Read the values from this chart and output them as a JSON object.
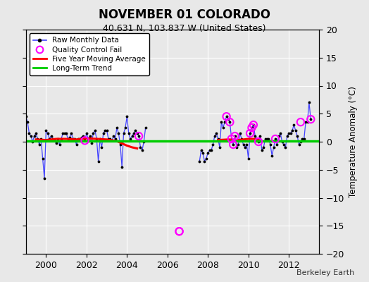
{
  "title": "NOVEMBER 01 COLORADO",
  "subtitle": "40.631 N, 103.837 W (United States)",
  "ylabel": "Temperature Anomaly (°C)",
  "watermark": "Berkeley Earth",
  "xlim": [
    1999.0,
    2013.5
  ],
  "ylim": [
    -20,
    20
  ],
  "yticks": [
    -20,
    -15,
    -10,
    -5,
    0,
    5,
    10,
    15,
    20
  ],
  "xticks": [
    2000,
    2002,
    2004,
    2006,
    2008,
    2010,
    2012
  ],
  "background_color": "#e8e8e8",
  "raw_x": [
    1999.0,
    1999.083,
    1999.167,
    1999.25,
    1999.333,
    1999.417,
    1999.5,
    1999.583,
    1999.667,
    1999.75,
    1999.833,
    1999.917,
    2000.0,
    2000.083,
    2000.167,
    2000.25,
    2000.333,
    2000.417,
    2000.5,
    2000.583,
    2000.667,
    2000.75,
    2000.833,
    2000.917,
    2001.0,
    2001.083,
    2001.167,
    2001.25,
    2001.333,
    2001.417,
    2001.5,
    2001.583,
    2001.667,
    2001.75,
    2001.833,
    2001.917,
    2002.0,
    2002.083,
    2002.167,
    2002.25,
    2002.333,
    2002.417,
    2002.5,
    2002.583,
    2002.667,
    2002.75,
    2002.833,
    2002.917,
    2003.0,
    2003.083,
    2003.167,
    2003.25,
    2003.333,
    2003.417,
    2003.5,
    2003.583,
    2003.667,
    2003.75,
    2003.833,
    2003.917,
    2004.0,
    2004.083,
    2004.167,
    2004.25,
    2004.333,
    2004.417,
    2004.5,
    2004.583,
    2004.667,
    2004.75,
    2004.833,
    2004.917,
    2007.583,
    2007.667,
    2007.75,
    2007.833,
    2007.917,
    2008.0,
    2008.083,
    2008.167,
    2008.25,
    2008.333,
    2008.417,
    2008.5,
    2008.583,
    2008.667,
    2008.75,
    2008.833,
    2008.917,
    2009.0,
    2009.083,
    2009.167,
    2009.25,
    2009.333,
    2009.417,
    2009.5,
    2009.583,
    2009.667,
    2009.75,
    2009.833,
    2009.917,
    2010.0,
    2010.083,
    2010.167,
    2010.25,
    2010.333,
    2010.417,
    2010.5,
    2010.583,
    2010.667,
    2010.75,
    2010.833,
    2010.917,
    2011.0,
    2011.083,
    2011.167,
    2011.25,
    2011.333,
    2011.417,
    2011.5,
    2011.583,
    2011.667,
    2011.75,
    2011.833,
    2011.917,
    2012.0,
    2012.083,
    2012.167,
    2012.25,
    2012.333,
    2012.417,
    2012.5,
    2012.583,
    2012.667,
    2012.75,
    2012.833,
    2012.917,
    2013.0,
    2013.083
  ],
  "raw_y": [
    4.5,
    3.5,
    1.5,
    1.0,
    0.0,
    1.0,
    1.5,
    0.5,
    -0.5,
    0.5,
    -3.0,
    -6.5,
    2.0,
    1.5,
    0.5,
    1.0,
    0.5,
    0.2,
    -0.3,
    0.5,
    -0.5,
    0.5,
    1.5,
    1.5,
    1.5,
    0.5,
    0.8,
    1.5,
    0.5,
    0.5,
    -0.5,
    0.5,
    0.5,
    0.8,
    1.0,
    0.2,
    1.5,
    0.5,
    1.0,
    -0.3,
    1.5,
    2.0,
    0.5,
    -3.5,
    0.5,
    -1.0,
    1.5,
    2.0,
    2.0,
    0.5,
    0.5,
    0.2,
    1.0,
    0.5,
    2.5,
    1.5,
    -0.5,
    -4.5,
    1.5,
    2.5,
    4.5,
    1.5,
    0.5,
    1.0,
    1.5,
    2.0,
    1.5,
    1.0,
    -1.0,
    -1.5,
    0.0,
    2.5,
    -3.5,
    -1.5,
    -2.0,
    -3.5,
    -3.0,
    -2.0,
    -1.5,
    -1.5,
    -0.5,
    1.0,
    1.5,
    0.5,
    -1.0,
    3.5,
    2.5,
    3.5,
    4.5,
    4.0,
    3.5,
    0.5,
    -0.5,
    1.0,
    -1.0,
    -0.5,
    1.5,
    0.5,
    -0.5,
    -1.0,
    -0.5,
    -3.0,
    1.5,
    2.5,
    3.0,
    1.0,
    0.5,
    0.0,
    1.0,
    -1.5,
    -1.0,
    0.5,
    0.5,
    0.5,
    -0.5,
    -2.5,
    -1.0,
    0.5,
    -0.5,
    1.0,
    1.5,
    0.0,
    -0.5,
    -1.0,
    1.0,
    1.5,
    1.5,
    2.0,
    3.0,
    2.0,
    1.0,
    -0.5,
    0.0,
    0.5,
    0.5,
    3.5,
    3.5,
    7.0,
    4.0
  ],
  "qc_fail_x": [
    2001.917,
    2004.583,
    2006.583,
    2008.917,
    2009.083,
    2009.167,
    2009.25,
    2009.333,
    2010.083,
    2010.167,
    2010.25,
    2010.5,
    2011.333,
    2012.583,
    2013.083
  ],
  "qc_fail_y": [
    0.2,
    1.0,
    -16.0,
    4.5,
    3.5,
    0.5,
    -0.5,
    1.0,
    1.5,
    2.5,
    3.0,
    0.0,
    0.5,
    3.5,
    4.0
  ],
  "isolated_x": [
    2006.583
  ],
  "isolated_y": [
    -16.0
  ],
  "ma_x": [
    1999.5,
    2000.0,
    2000.5,
    2001.0,
    2001.5,
    2002.0,
    2002.5,
    2003.0,
    2003.5,
    2003.75,
    2004.0,
    2004.25,
    2004.5,
    2008.5,
    2009.0,
    2009.5,
    2010.0,
    2010.25,
    2010.5
  ],
  "ma_y": [
    0.4,
    0.3,
    0.5,
    0.5,
    0.4,
    0.6,
    0.5,
    0.4,
    0.1,
    -0.3,
    -0.7,
    -1.0,
    -1.2,
    0.3,
    0.4,
    0.3,
    0.5,
    0.5,
    0.4
  ],
  "trend_y": 0.15,
  "raw_color": "#4444ff",
  "qc_color": "#ff00ff",
  "ma_color": "#ff0000",
  "trend_color": "#00cc00",
  "grid_color": "#ffffff",
  "legend_bg": "#ffffff"
}
